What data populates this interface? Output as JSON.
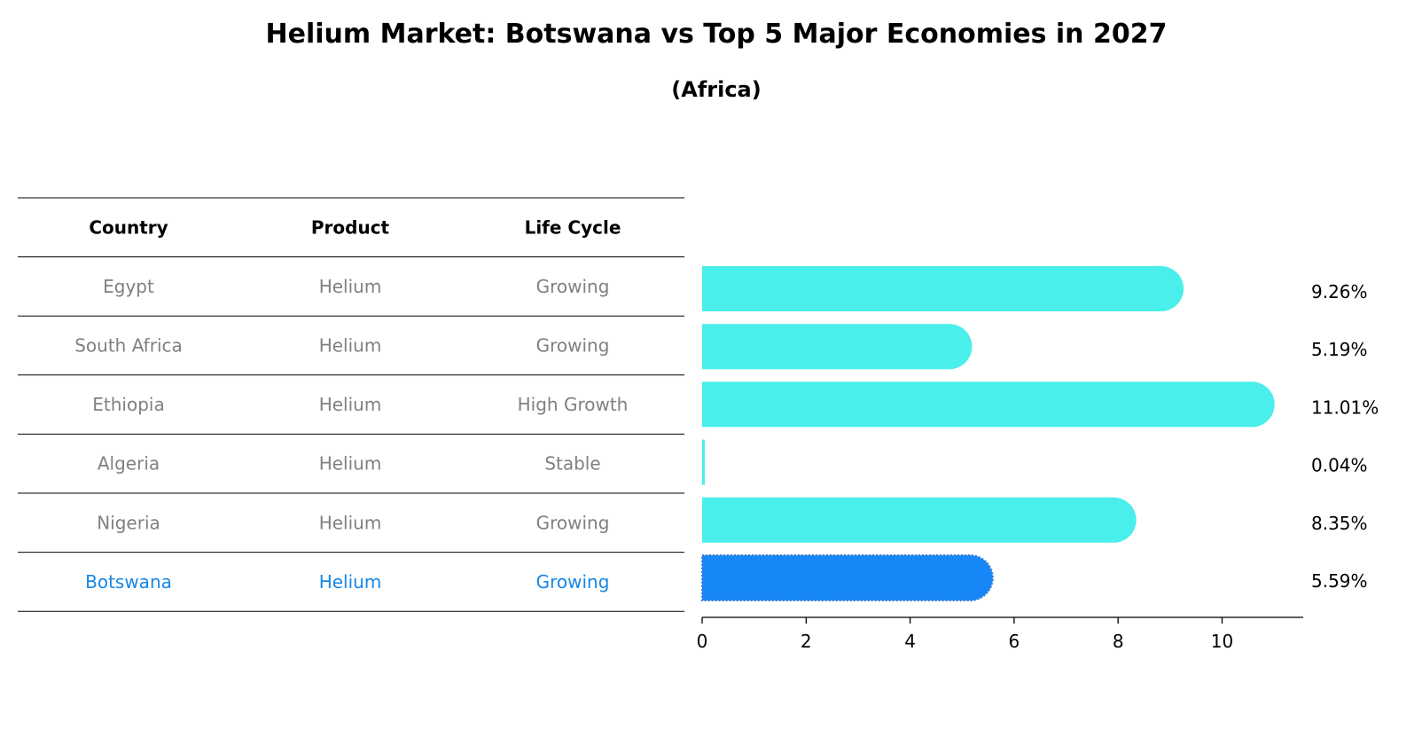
{
  "title": "Helium Market: Botswana vs Top 5 Major Economies in 2027",
  "subtitle": "(Africa)",
  "table": {
    "headers": [
      "Country",
      "Product",
      "Life Cycle"
    ],
    "rows": [
      {
        "country": "Egypt",
        "product": "Helium",
        "life_cycle": "Growing"
      },
      {
        "country": "South Africa",
        "product": "Helium",
        "life_cycle": "Growing"
      },
      {
        "country": "Ethiopia",
        "product": "Helium",
        "life_cycle": "High Growth"
      },
      {
        "country": "Algeria",
        "product": "Helium",
        "life_cycle": "Stable"
      },
      {
        "country": "Nigeria",
        "product": "Helium",
        "life_cycle": "Growing"
      },
      {
        "country": "Botswana",
        "product": "Helium",
        "life_cycle": "Growing"
      }
    ],
    "highlight_country": "Botswana"
  },
  "chart_data": {
    "type": "bar",
    "orientation": "horizontal",
    "categories": [
      "Egypt",
      "South Africa",
      "Ethiopia",
      "Algeria",
      "Nigeria",
      "Botswana"
    ],
    "values": [
      9.26,
      5.19,
      11.01,
      0.04,
      8.35,
      5.59
    ],
    "value_labels": [
      "9.26%",
      "5.19%",
      "11.01%",
      "0.04%",
      "8.35%",
      "5.59%"
    ],
    "xlim": [
      0,
      11.56
    ],
    "xticks": [
      0,
      2,
      4,
      6,
      8,
      10
    ],
    "grid": false,
    "highlight": "Botswana"
  },
  "colors": {
    "bar": "#4aeeea",
    "highlight": "#1787f7",
    "highlight_text": "#1787e6",
    "muted_text": "#808080"
  }
}
